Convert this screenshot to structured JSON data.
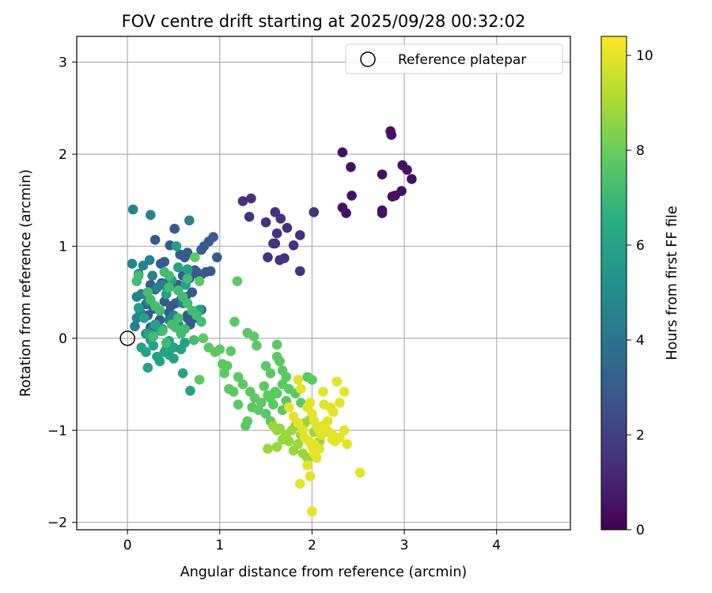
{
  "chart_data": {
    "type": "scatter",
    "title": "FOV centre drift starting at 2025/09/28 00:32:02",
    "xlabel": "Angular distance from reference (arcmin)",
    "ylabel": "Rotation from reference (arcmin)",
    "xlim": [
      -0.55,
      4.8
    ],
    "ylim": [
      -2.08,
      3.28
    ],
    "xticks": [
      0,
      1,
      2,
      3,
      4
    ],
    "yticks": [
      -2,
      -1,
      0,
      1,
      2,
      3
    ],
    "grid": true,
    "legend": {
      "placement": "top-right",
      "entries": [
        "Reference platepar"
      ]
    },
    "reference_point": {
      "x": 0,
      "y": 0,
      "label": "Reference platepar"
    },
    "colorbar": {
      "label": "Hours from first FF file",
      "colormap": "viridis",
      "range": [
        0,
        10.4
      ],
      "ticks": [
        0,
        2,
        4,
        6,
        8,
        10
      ]
    },
    "series": [
      {
        "name": "hour-0.5",
        "t": 0.5,
        "x": [
          2.85,
          2.86,
          2.33,
          2.42,
          2.98,
          3.03,
          3.08,
          2.76,
          2.87,
          2.9,
          2.97,
          2.43,
          2.33,
          2.37,
          2.76,
          2.76
        ],
        "y": [
          2.25,
          2.21,
          2.02,
          1.86,
          1.88,
          1.83,
          1.73,
          1.78,
          1.54,
          1.55,
          1.6,
          1.55,
          1.42,
          1.36,
          1.39,
          1.36
        ]
      },
      {
        "name": "hour-1.5",
        "t": 1.5,
        "x": [
          1.25,
          1.34,
          2.02,
          1.6,
          1.66,
          1.32,
          1.5,
          1.73,
          1.62,
          1.87,
          1.6,
          1.8,
          1.58,
          1.52,
          1.7,
          1.65,
          1.87
        ],
        "y": [
          1.49,
          1.52,
          1.37,
          1.37,
          1.3,
          1.32,
          1.26,
          1.2,
          1.14,
          1.12,
          1.03,
          1.01,
          1.03,
          0.88,
          0.87,
          0.85,
          0.73
        ]
      },
      {
        "name": "hour-3.0",
        "t": 3.0,
        "x": [
          0.93,
          0.88,
          0.83,
          0.8,
          0.65,
          0.62,
          0.57,
          0.51,
          0.46,
          0.4,
          0.36,
          0.3,
          0.75,
          0.73,
          0.97,
          0.9,
          0.85,
          0.8,
          0.75,
          0.67,
          0.6,
          0.55,
          0.45,
          0.37,
          0.3,
          0.25,
          0.7,
          0.63,
          0.58,
          0.52,
          0.47,
          0.4,
          0.35,
          0.28,
          0.22,
          0.2,
          0.75,
          0.8,
          0.65,
          0.55,
          0.45,
          0.35,
          0.25,
          0.65,
          0.68,
          0.5
        ],
        "y": [
          1.1,
          1.05,
          1.0,
          0.96,
          0.93,
          0.88,
          0.91,
          1.19,
          1.01,
          0.83,
          0.81,
          1.07,
          0.72,
          0.74,
          0.88,
          0.73,
          0.72,
          0.69,
          0.7,
          0.65,
          0.68,
          0.58,
          0.62,
          0.6,
          0.53,
          0.58,
          0.5,
          0.45,
          0.42,
          0.38,
          0.35,
          0.4,
          0.3,
          0.32,
          0.25,
          0.37,
          0.22,
          0.31,
          0.25,
          0.15,
          0.28,
          0.2,
          0.12,
          0.22,
          0.15,
          0.18
        ]
      },
      {
        "name": "hour-4.6",
        "t": 4.6,
        "x": [
          0.06,
          0.25,
          0.67,
          0.05,
          0.17,
          0.24,
          0.12,
          0.27,
          0.32,
          0.15,
          0.1,
          0.22,
          0.35,
          0.5,
          0.45,
          0.55,
          0.28,
          0.2,
          0.14,
          0.1,
          0.08,
          0.42,
          0.38,
          0.6
        ],
        "y": [
          1.4,
          1.34,
          1.28,
          0.81,
          0.79,
          0.85,
          0.7,
          0.68,
          0.55,
          0.48,
          0.45,
          0.4,
          0.3,
          0.25,
          0.2,
          0.15,
          0.12,
          0.05,
          0.28,
          0.22,
          0.13,
          0.48,
          0.58,
          0.38
        ]
      },
      {
        "name": "hour-6.0",
        "t": 6.0,
        "x": [
          0.53,
          0.55,
          0.48,
          0.63,
          0.65,
          0.78,
          0.42,
          0.12,
          0.18,
          0.3,
          0.36,
          0.22,
          0.25,
          0.45,
          0.5,
          0.58,
          0.4,
          0.32,
          0.68,
          0.22,
          0.35,
          0.6,
          0.45,
          0.28,
          0.15,
          0.5,
          0.42,
          0.62,
          0.38,
          0.2
        ],
        "y": [
          1.0,
          0.77,
          0.63,
          0.58,
          0.75,
          0.31,
          0.48,
          0.33,
          0.22,
          0.15,
          0.08,
          0.05,
          -0.02,
          -0.03,
          -0.1,
          -0.12,
          -0.15,
          -0.2,
          -0.57,
          -0.32,
          -0.25,
          -0.38,
          -0.18,
          -0.08,
          -0.1,
          -0.22,
          -0.12,
          -0.05,
          0.1,
          -0.15
        ]
      },
      {
        "name": "hour-7.2",
        "t": 7.2,
        "x": [
          0.1,
          0.12,
          0.22,
          0.25,
          0.3,
          0.4,
          0.45,
          0.55,
          0.6,
          0.65,
          0.7,
          0.75,
          0.8,
          0.48,
          0.38,
          0.28,
          0.52,
          0.58,
          0.62,
          0.72,
          0.42,
          0.35,
          0.55,
          0.45,
          0.65
        ],
        "y": [
          0.62,
          0.68,
          0.5,
          0.42,
          0.35,
          0.72,
          0.68,
          0.52,
          0.45,
          0.38,
          0.3,
          0.25,
          0.18,
          0.15,
          0.08,
          0.02,
          0.12,
          0.05,
          0.1,
          -0.02,
          -0.05,
          0.3,
          0.22,
          0.55,
          0.65
        ]
      },
      {
        "name": "hour-7.8",
        "t": 7.8,
        "x": [
          0.73,
          0.78,
          1.19,
          1.16,
          1.3,
          1.37,
          1.4,
          1.62,
          1.65,
          1.5,
          1.55,
          0.82,
          0.88,
          0.95,
          1.0,
          1.03,
          1.08,
          1.12,
          1.2,
          1.25,
          1.33,
          1.38,
          1.45,
          1.48,
          1.55,
          1.58,
          1.62,
          1.68,
          1.72,
          1.05,
          1.1,
          1.15,
          1.2,
          1.28,
          1.3,
          1.35,
          1.42,
          1.52,
          1.6,
          1.68,
          1.75,
          1.82,
          1.88,
          1.95,
          2.0,
          1.62,
          1.68,
          1.72,
          1.5,
          1.55,
          0.78
        ],
        "y": [
          0.88,
          0.62,
          0.62,
          0.18,
          0.06,
          0.02,
          -0.08,
          -0.07,
          -0.25,
          -0.3,
          -0.38,
          0.0,
          -0.1,
          -0.15,
          -0.12,
          -0.28,
          -0.3,
          -0.14,
          -0.42,
          -0.5,
          -0.58,
          -0.65,
          -0.7,
          -0.52,
          -0.65,
          -0.72,
          -0.6,
          -0.78,
          -0.68,
          -0.38,
          -0.55,
          -0.58,
          -0.72,
          -0.95,
          -0.9,
          -0.75,
          -0.78,
          -0.62,
          -0.58,
          -0.5,
          -0.55,
          -0.6,
          -0.7,
          -0.42,
          -0.45,
          -0.2,
          -0.35,
          -0.42,
          -0.82,
          -0.9,
          -0.45
        ]
      },
      {
        "name": "hour-8.8",
        "t": 8.8,
        "x": [
          1.52,
          1.62,
          1.68,
          1.72,
          1.78,
          1.82,
          1.85,
          1.88,
          1.92,
          1.98,
          2.02,
          2.08,
          1.65,
          1.7,
          1.75,
          1.8,
          1.9,
          1.95,
          1.58,
          1.62
        ],
        "y": [
          -1.2,
          -1.18,
          -1.1,
          -1.05,
          -1.0,
          -0.95,
          -1.15,
          -1.05,
          -0.92,
          -0.88,
          -1.02,
          -1.12,
          -0.98,
          -1.08,
          -1.12,
          -1.22,
          -1.25,
          -1.3,
          -0.95,
          -1.0
        ]
      },
      {
        "name": "hour-10.0",
        "t": 10.0,
        "x": [
          2.27,
          2.12,
          2.13,
          2.23,
          2.2,
          2.3,
          2.35,
          1.85,
          1.88,
          1.95,
          2.0,
          2.02,
          2.05,
          2.08,
          2.1,
          2.15,
          2.18,
          2.22,
          2.25,
          2.3,
          2.35,
          2.38,
          1.98,
          2.0,
          2.02,
          2.05,
          1.95,
          1.98,
          2.52,
          2.0,
          1.75,
          1.8,
          1.85,
          1.9,
          1.92,
          1.97,
          2.02,
          2.08,
          2.12,
          2.17,
          2.22,
          1.87
        ],
        "y": [
          -0.47,
          -0.58,
          -0.72,
          -0.8,
          -0.75,
          -0.7,
          -0.58,
          -0.45,
          -0.55,
          -0.75,
          -0.82,
          -0.9,
          -0.95,
          -1.0,
          -1.05,
          -0.98,
          -1.02,
          -1.1,
          -1.12,
          -1.08,
          -1.0,
          -1.15,
          -0.7,
          -1.18,
          -1.25,
          -1.3,
          -1.38,
          -1.5,
          -1.46,
          -1.88,
          -0.75,
          -0.85,
          -0.92,
          -1.0,
          -1.08,
          -1.12,
          -1.15,
          -1.2,
          -0.95,
          -0.9,
          -1.05,
          -1.58
        ]
      }
    ]
  }
}
